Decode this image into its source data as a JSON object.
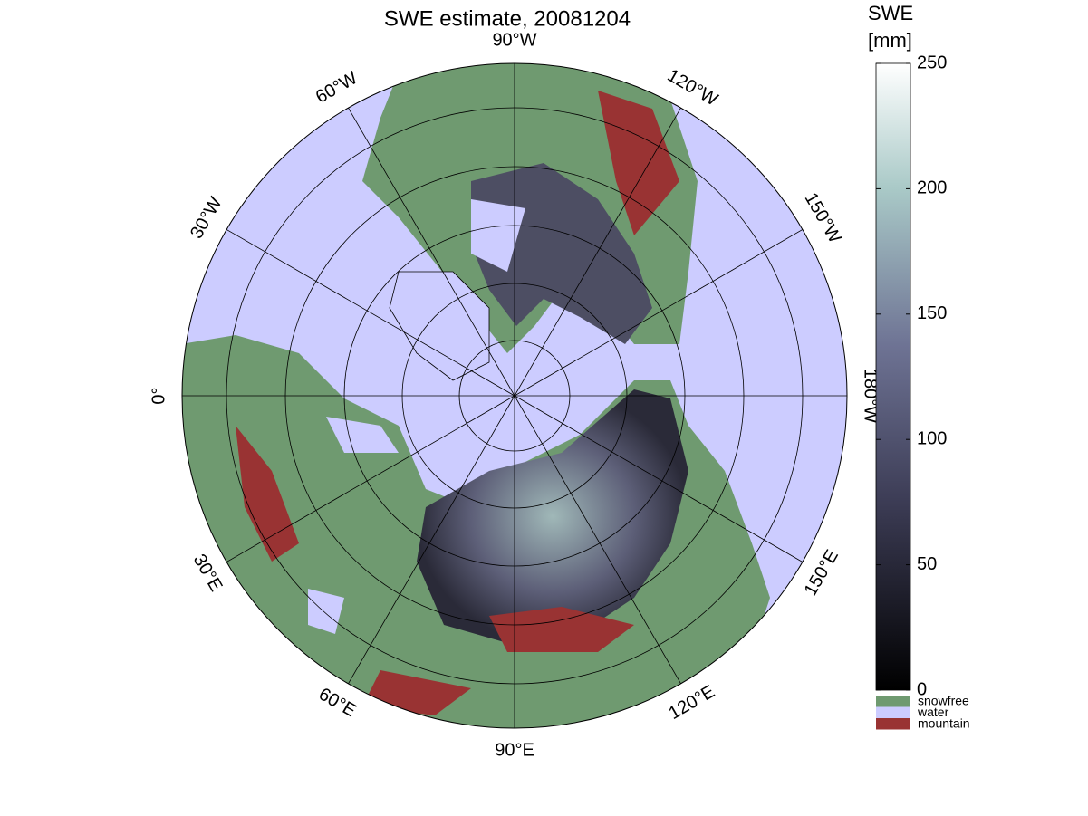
{
  "header": {
    "title": "SWE estimate, 20081204"
  },
  "map": {
    "longitude_labels": [
      "0°",
      "30°E",
      "60°E",
      "90°E",
      "120°E",
      "150°E",
      "180°W",
      "150°W",
      "120°W",
      "90°W",
      "60°W",
      "30°W"
    ]
  },
  "colorbar": {
    "title": [
      "SWE",
      "[mm]"
    ],
    "lim": [
      0,
      250
    ],
    "ticks": [
      0,
      50,
      100,
      150,
      200,
      250
    ]
  },
  "legend": {
    "items": [
      {
        "label": "snowfree",
        "color": "#6f9a70"
      },
      {
        "label": "water",
        "color": "#ccccff"
      },
      {
        "label": "mountain",
        "color": "#993333"
      }
    ]
  }
}
